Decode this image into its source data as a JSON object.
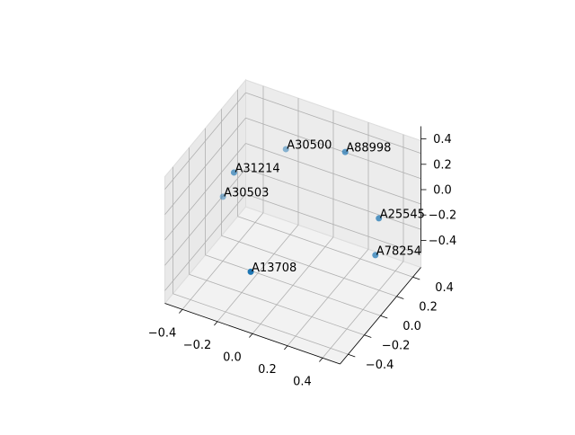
{
  "chart_data": {
    "type": "scatter3d",
    "series": [
      {
        "color": "#1f77b4",
        "labels": [
          "A30500",
          "A88998",
          "A31214",
          "A30503",
          "A25545",
          "A78254",
          "A13708"
        ],
        "x": [
          -0.16,
          0.16,
          -0.35,
          -0.45,
          0.32,
          0.3,
          -0.19
        ],
        "y": [
          0.26,
          0.3,
          0.03,
          0.11,
          0.37,
          0.37,
          -0.11
        ],
        "z": [
          0.3,
          0.4,
          0.2,
          -0.1,
          -0.1,
          -0.4,
          -0.4
        ]
      }
    ],
    "xlim": [
      -0.5,
      0.5
    ],
    "ylim": [
      -0.5,
      0.5
    ],
    "zlim": [
      -0.5,
      0.5
    ],
    "xticks": [
      {
        "value": -0.4,
        "label": "−0.4"
      },
      {
        "value": -0.2,
        "label": "−0.2"
      },
      {
        "value": 0,
        "label": "0.0"
      },
      0.2,
      0.4
    ],
    "yticks": [
      {
        "value": -0.4,
        "label": "−0.4"
      },
      {
        "value": -0.2,
        "label": "−0.2"
      },
      {
        "value": 0,
        "label": "0.0"
      },
      0.2,
      0.4
    ],
    "zticks": [
      {
        "value": -0.4,
        "label": "−0.4"
      },
      {
        "value": -0.2,
        "label": "−0.2"
      },
      {
        "value": 0,
        "label": "0.0"
      },
      0.2,
      0.4
    ],
    "grid": true
  }
}
